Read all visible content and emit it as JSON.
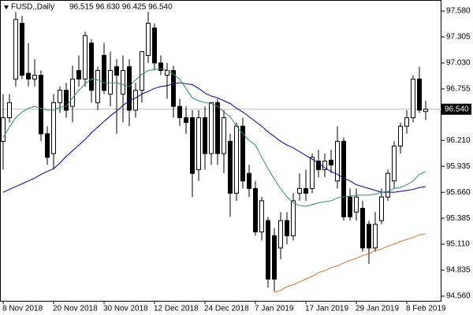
{
  "chart_data": {
    "type": "candlestick",
    "title": "FUSD,,Daily",
    "ohlc_text": "96.515 96.630 96.425 96.540",
    "categories": [
      "8 Nov 2018",
      null,
      null,
      null,
      null,
      null,
      null,
      null,
      "20 Nov 2018",
      null,
      null,
      null,
      null,
      null,
      null,
      null,
      "30 Nov 2018",
      null,
      null,
      null,
      null,
      null,
      null,
      null,
      "12 Dec 2018",
      null,
      null,
      null,
      null,
      null,
      null,
      null,
      "24 Dec 2018",
      null,
      null,
      null,
      null,
      null,
      null,
      null,
      "7 Jan 2019",
      null,
      null,
      null,
      null,
      null,
      null,
      null,
      "17 Jan 2019",
      null,
      null,
      null,
      null,
      null,
      null,
      null,
      "29 Jan 2019",
      null,
      null,
      null,
      null,
      null,
      null,
      null,
      "8 Feb 2019",
      null,
      null,
      null
    ],
    "open": [
      96.2,
      96.45,
      96.86,
      97.45,
      96.92,
      96.86,
      96.9,
      96.28,
      96.07,
      96.61,
      96.74,
      96.57,
      96.95,
      96.86,
      97.24,
      96.61,
      97.11,
      96.7,
      96.99,
      96.7,
      96.99,
      96.53,
      96.74,
      97.11,
      97.4,
      97.03,
      96.9,
      96.95,
      96.57,
      96.45,
      96.45,
      95.9,
      96.45,
      96.07,
      96.61,
      96.07,
      96.2,
      95.65,
      96.36,
      95.86,
      95.7,
      95.24,
      95.36,
      95.2,
      95.07,
      95.36,
      95.2,
      95.65,
      95.7,
      95.7,
      95.99,
      95.9,
      96.0,
      95.78,
      96.2,
      95.61,
      95.45,
      95.49,
      95.32,
      95.07,
      95.36,
      95.61,
      95.78,
      96.15,
      96.36,
      96.45,
      96.86,
      96.515
    ],
    "high": [
      96.7,
      96.7,
      97.57,
      97.53,
      97.24,
      97.07,
      96.95,
      96.36,
      96.7,
      96.78,
      96.82,
      97.0,
      97.11,
      97.36,
      97.28,
      96.99,
      97.24,
      97.15,
      97.07,
      97.11,
      97.07,
      96.82,
      97.15,
      97.57,
      97.45,
      97.11,
      97.03,
      97.0,
      96.65,
      96.57,
      96.53,
      96.53,
      96.57,
      96.61,
      96.65,
      96.53,
      96.28,
      96.4,
      96.45,
      95.95,
      95.78,
      95.61,
      95.4,
      95.28,
      95.45,
      95.45,
      95.65,
      95.86,
      95.9,
      96.07,
      96.11,
      96.07,
      96.11,
      96.36,
      96.24,
      95.7,
      95.7,
      95.57,
      95.36,
      95.45,
      95.7,
      95.9,
      96.2,
      96.4,
      96.53,
      96.9,
      96.99,
      96.63
    ],
    "low": [
      95.9,
      96.4,
      96.78,
      96.86,
      96.78,
      96.78,
      96.2,
      95.95,
      95.9,
      96.5,
      96.45,
      96.4,
      96.78,
      96.78,
      96.61,
      96.53,
      96.7,
      96.57,
      96.28,
      96.4,
      96.36,
      96.45,
      96.61,
      97.03,
      96.95,
      96.9,
      96.65,
      96.45,
      96.36,
      96.28,
      95.61,
      95.78,
      95.9,
      95.95,
      95.95,
      95.86,
      95.4,
      95.57,
      95.7,
      95.61,
      95.2,
      95.15,
      94.65,
      94.61,
      94.95,
      95.11,
      95.15,
      95.57,
      95.57,
      95.65,
      95.82,
      95.82,
      95.86,
      95.7,
      95.36,
      95.36,
      95.36,
      95.03,
      94.9,
      95.03,
      95.32,
      95.57,
      95.7,
      96.07,
      96.28,
      96.4,
      96.5,
      96.425
    ],
    "close": [
      96.45,
      96.61,
      97.49,
      96.9,
      96.86,
      96.9,
      96.28,
      96.03,
      96.61,
      96.74,
      96.53,
      96.86,
      96.86,
      97.32,
      96.74,
      96.95,
      96.74,
      96.95,
      96.9,
      96.95,
      96.53,
      96.74,
      97.15,
      97.45,
      97.03,
      96.95,
      96.95,
      96.57,
      96.45,
      96.4,
      95.86,
      96.45,
      96.07,
      96.61,
      96.07,
      96.45,
      95.65,
      96.36,
      95.78,
      95.7,
      95.24,
      95.57,
      94.74,
      94.74,
      95.36,
      95.2,
      95.57,
      95.7,
      95.65,
      96.03,
      95.9,
      95.99,
      95.95,
      96.2,
      95.4,
      95.4,
      95.61,
      95.07,
      95.07,
      95.32,
      95.61,
      95.86,
      96.15,
      96.36,
      96.45,
      96.86,
      96.53,
      96.54
    ],
    "up_color": "#ffffff",
    "down_color": "#000000",
    "series": [
      {
        "color": "#000080",
        "values": [
          95.66,
          95.69,
          95.72,
          95.75,
          95.78,
          95.81,
          95.85,
          95.88,
          95.91,
          95.97,
          96.04,
          96.1,
          96.16,
          96.22,
          96.29,
          96.35,
          96.41,
          96.47,
          96.52,
          96.58,
          96.63,
          96.66,
          96.7,
          96.73,
          96.76,
          96.78,
          96.79,
          96.81,
          96.82,
          96.81,
          96.8,
          96.76,
          96.71,
          96.68,
          96.66,
          96.63,
          96.6,
          96.55,
          96.51,
          96.46,
          96.41,
          96.36,
          96.3,
          96.25,
          96.2,
          96.16,
          96.13,
          96.09,
          96.05,
          96.01,
          95.97,
          95.92,
          95.88,
          95.85,
          95.81,
          95.78,
          95.74,
          95.72,
          95.7,
          95.68,
          95.66,
          95.66,
          95.66,
          95.67,
          95.68,
          95.69,
          95.71,
          95.72
        ]
      },
      {
        "color": "#2e8b77",
        "values": [
          96.24,
          96.35,
          96.45,
          96.51,
          96.55,
          96.57,
          96.55,
          96.53,
          96.53,
          96.56,
          96.57,
          96.66,
          96.74,
          96.81,
          96.86,
          96.85,
          96.82,
          96.82,
          96.82,
          96.8,
          96.78,
          96.85,
          96.91,
          96.95,
          96.96,
          96.97,
          96.96,
          96.91,
          96.86,
          96.76,
          96.66,
          96.63,
          96.61,
          96.6,
          96.57,
          96.51,
          96.46,
          96.36,
          96.28,
          96.21,
          96.16,
          96.03,
          95.91,
          95.8,
          95.7,
          95.61,
          95.55,
          95.52,
          95.51,
          95.53,
          95.55,
          95.56,
          95.57,
          95.6,
          95.61,
          95.62,
          95.63,
          95.63,
          95.63,
          95.64,
          95.66,
          95.67,
          95.7,
          95.71,
          95.74,
          95.78,
          95.85,
          95.88
        ]
      },
      {
        "color": "#c87530",
        "values": [
          null,
          null,
          null,
          null,
          null,
          null,
          null,
          null,
          null,
          null,
          null,
          null,
          null,
          null,
          null,
          null,
          null,
          null,
          null,
          null,
          null,
          null,
          null,
          null,
          null,
          null,
          null,
          null,
          null,
          null,
          null,
          null,
          null,
          null,
          null,
          null,
          null,
          null,
          null,
          null,
          null,
          null,
          null,
          94.6,
          94.62,
          94.66,
          94.68,
          94.71,
          94.74,
          94.77,
          94.81,
          94.83,
          94.86,
          94.88,
          94.91,
          94.94,
          94.96,
          94.99,
          95.01,
          95.04,
          95.06,
          95.09,
          95.11,
          95.14,
          95.16,
          95.18,
          95.21,
          95.22
        ]
      }
    ],
    "last_price": {
      "value": 96.54,
      "label": "96.540"
    },
    "ylim": [
      94.51,
      97.697
    ],
    "yticks": [
      {
        "value": 97.58,
        "label": "97.580"
      },
      {
        "value": 97.305,
        "label": "97.305"
      },
      {
        "value": 97.03,
        "label": "97.030"
      },
      {
        "value": 96.755,
        "label": "96.755"
      },
      {
        "value": 96.21,
        "label": "96.210"
      },
      {
        "value": 95.935,
        "label": "95.935"
      },
      {
        "value": 95.66,
        "label": "95.660"
      },
      {
        "value": 95.385,
        "label": "95.385"
      },
      {
        "value": 95.11,
        "label": "95.110"
      },
      {
        "value": 94.835,
        "label": "94.835"
      },
      {
        "value": 94.56,
        "label": "94.560"
      }
    ]
  }
}
